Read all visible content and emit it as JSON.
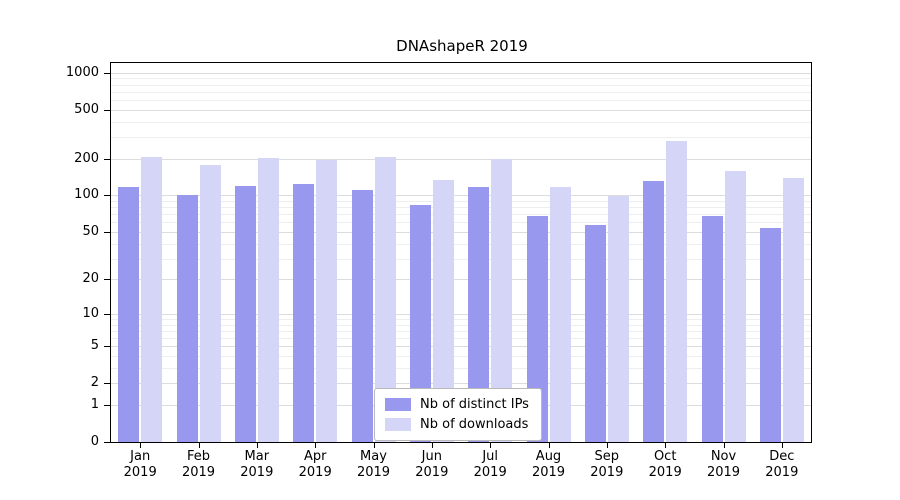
{
  "chart_data": {
    "type": "bar",
    "title": "DNAshapeR 2019",
    "months": [
      "Jan",
      "Feb",
      "Mar",
      "Apr",
      "May",
      "Jun",
      "Jul",
      "Aug",
      "Sep",
      "Oct",
      "Nov",
      "Dec"
    ],
    "year": "2019",
    "series": [
      {
        "name": "Nb of distinct IPs",
        "color": "#9898ee",
        "values": [
          117,
          100,
          120,
          125,
          110,
          83,
          117,
          68,
          57,
          132,
          68,
          54
        ]
      },
      {
        "name": "Nb of downloads",
        "color": "#d5d5f8",
        "values": [
          207,
          177,
          203,
          194,
          207,
          133,
          197,
          118,
          98,
          277,
          157,
          140
        ]
      }
    ],
    "xlabel": "",
    "ylabel": "",
    "yscale": "log1p",
    "yticks": [
      0,
      1,
      2,
      5,
      10,
      20,
      50,
      100,
      200,
      500,
      1000
    ],
    "minor_gridlines": [
      3,
      4,
      6,
      7,
      8,
      9,
      30,
      40,
      60,
      70,
      80,
      90,
      300,
      400,
      600,
      700,
      800,
      900
    ],
    "ylim": [
      0,
      1200
    ],
    "grid": true,
    "legend_position": "lower center inside plot"
  }
}
